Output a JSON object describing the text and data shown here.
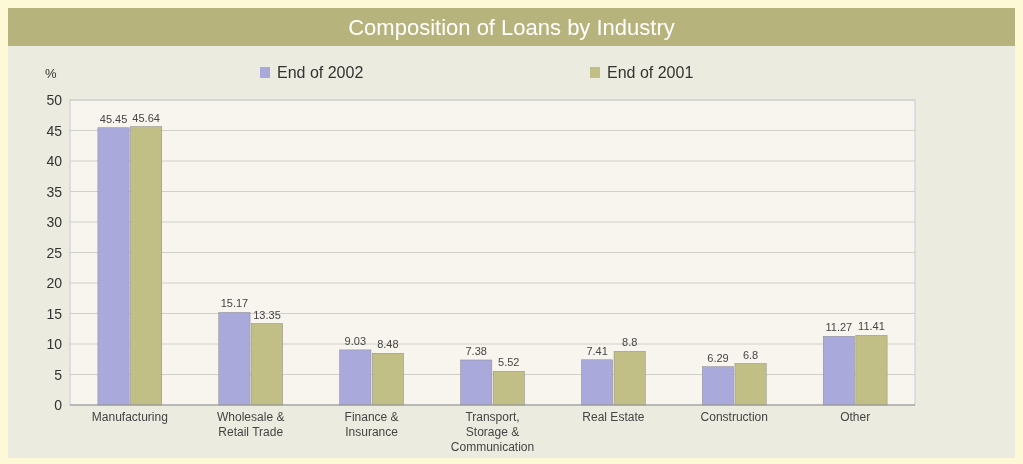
{
  "chart_data": {
    "type": "bar",
    "title": "Composition of Loans by Industry",
    "ylabel": "%",
    "categories": [
      "Manufacturing",
      "Wholesale & Retail Trade",
      "Finance & Insurance",
      "Transport, Storage & Communication",
      "Real Estate",
      "Construction",
      "Other"
    ],
    "series": [
      {
        "name": "End of 2002",
        "color": "#a9aadb",
        "values": [
          45.45,
          15.17,
          9.03,
          7.38,
          7.41,
          6.29,
          11.27
        ]
      },
      {
        "name": "End of 2001",
        "color": "#c2bf86",
        "values": [
          45.64,
          13.35,
          8.48,
          5.52,
          8.8,
          6.8,
          11.41
        ]
      }
    ],
    "ylim": [
      0,
      50
    ],
    "yticks": [
      0,
      5,
      10,
      15,
      20,
      25,
      30,
      35,
      40,
      45,
      50
    ],
    "grid": "y",
    "legend": "top",
    "data_labels": true
  }
}
